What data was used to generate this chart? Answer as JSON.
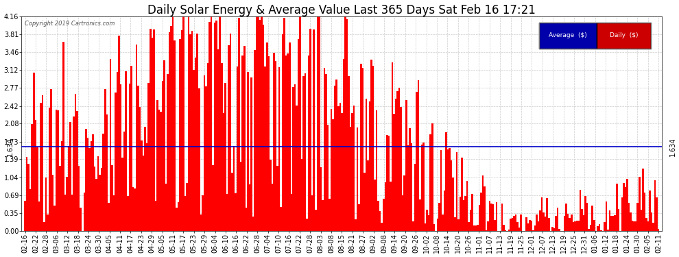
{
  "title": "Daily Solar Energy & Average Value Last 365 Days Sat Feb 16 17:21",
  "copyright": "Copyright 2019 Cartronics.com",
  "average_value": 1.634,
  "average_label": "1.634",
  "yticks": [
    0.0,
    0.35,
    0.69,
    1.04,
    1.39,
    1.73,
    2.08,
    2.42,
    2.77,
    3.12,
    3.46,
    3.81,
    4.16
  ],
  "ylim": [
    0.0,
    4.16
  ],
  "bar_color": "#ff0000",
  "avg_line_color": "#0000cc",
  "background_color": "#ffffff",
  "plot_bg_color": "#ffffff",
  "grid_color": "#cccccc",
  "title_fontsize": 12,
  "tick_fontsize": 7,
  "legend_avg_color": "#0000aa",
  "legend_daily_color": "#cc0000",
  "xtick_labels": [
    "02-16",
    "02-22",
    "02-28",
    "03-06",
    "03-12",
    "03-18",
    "03-24",
    "03-30",
    "04-05",
    "04-11",
    "04-17",
    "04-23",
    "04-29",
    "05-05",
    "05-11",
    "05-17",
    "05-23",
    "05-29",
    "06-04",
    "06-10",
    "06-16",
    "06-22",
    "06-28",
    "07-04",
    "07-10",
    "07-16",
    "07-22",
    "07-28",
    "08-03",
    "08-08",
    "08-15",
    "08-21",
    "08-27",
    "09-02",
    "09-08",
    "09-14",
    "09-20",
    "09-26",
    "10-02",
    "10-08",
    "10-14",
    "10-20",
    "10-26",
    "11-01",
    "11-07",
    "11-13",
    "11-19",
    "11-25",
    "12-01",
    "12-07",
    "12-13",
    "12-19",
    "12-25",
    "12-31",
    "01-06",
    "01-12",
    "01-18",
    "01-24",
    "01-30",
    "02-05",
    "02-11"
  ],
  "n_days": 365
}
